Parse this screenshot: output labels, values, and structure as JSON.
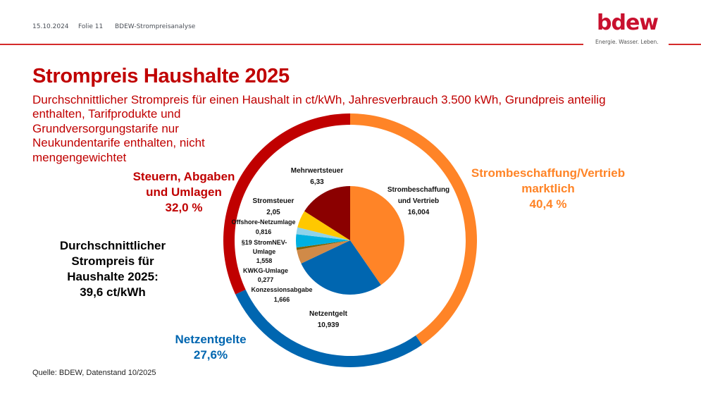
{
  "header": {
    "date": "15.10.2024",
    "slide": "Folie 11",
    "doc_title": "BDEW-Strompreisanalyse",
    "logo_text": "bdew",
    "tagline": "Energie. Wasser. Leben.",
    "accent_color": "#c8102e"
  },
  "title": "Strompreis Haushalte 2025",
  "subtitle_line1": "Durchschnittlicher Strompreis für einen Haushalt in ct/kWh, Jahresverbrauch 3.500 kWh, Grundpreis anteilig",
  "subtitle_rest": "enthalten, Tarifprodukte und Grundversorgungstarife nur Neukundentarife enthalten, nicht mengengewichtet",
  "average_box": {
    "line1": "Durchschnittlicher",
    "line2": "Strompreis für",
    "line3": "Haushalte 2025:",
    "line4": "39,6 ct/kWh"
  },
  "source": "Quelle: BDEW, Datenstand 10/2025",
  "chart_data": [
    {
      "type": "pie",
      "title": "Strompreis Haushalte 2025 – Bestandteile (ct/kWh)",
      "unit": "ct/kWh",
      "slices": [
        {
          "label": "Strombeschaffung und Vertrieb",
          "value": 16.004,
          "display": "16,004",
          "color": "#ff8427"
        },
        {
          "label": "Netzentgelt",
          "value": 10.939,
          "display": "10,939",
          "color": "#0066b0"
        },
        {
          "label": "Konzessionsabgabe",
          "value": 1.666,
          "display": "1,666",
          "color": "#d08a48"
        },
        {
          "label": "KWKG-Umlage",
          "value": 0.277,
          "display": "0,277",
          "color": "#7f6000"
        },
        {
          "label": "§19 StromNEV-Umlage",
          "value": 1.558,
          "display": "1,558",
          "color": "#00b0e0"
        },
        {
          "label": "Offshore-Netzumlage",
          "value": 0.816,
          "display": "0,816",
          "color": "#8fd3ea"
        },
        {
          "label": "Stromsteuer",
          "value": 2.05,
          "display": "2,05",
          "color": "#ffc800"
        },
        {
          "label": "Mehrwertsteuer",
          "value": 6.33,
          "display": "6,33",
          "color": "#8b0000"
        }
      ]
    },
    {
      "type": "pie",
      "title": "Anteile am Strompreis (äußerer Ring)",
      "unit": "%",
      "slices": [
        {
          "label": "Strombeschaffung/Vertrieb marktlich",
          "value": 40.4,
          "display": "40,4 %",
          "color": "#ff8427"
        },
        {
          "label": "Netzentgelte",
          "value": 27.6,
          "display": "27,6%",
          "color": "#0066b0"
        },
        {
          "label": "Steuern, Abgaben und Umlagen",
          "value": 32.0,
          "display": "32,0 %",
          "color": "#c00000"
        }
      ]
    }
  ],
  "ring_labels": {
    "market_line1": "Strombeschaffung/Vertrieb",
    "market_line2": "marktlich",
    "market_pct": "40,4 %",
    "grid_line1": "Netzentgelte",
    "grid_pct": "27,6%",
    "tax_line1": "Steuern, Abgaben",
    "tax_line2": "und Umlagen",
    "tax_pct": "32,0 %"
  },
  "pie_labels": {
    "beschaffung_1": "Strombeschaffung",
    "beschaffung_2": "und Vertrieb",
    "netz": "Netzentgelt",
    "konz": "Konzessionsabgabe",
    "kwkg": "KWKG-Umlage",
    "s19_1": "§19 StromNEV-",
    "s19_2": "Umlage",
    "offshore": "Offshore-Netzumlage",
    "stromsteuer": "Stromsteuer",
    "mwst": "Mehrwertsteuer"
  }
}
